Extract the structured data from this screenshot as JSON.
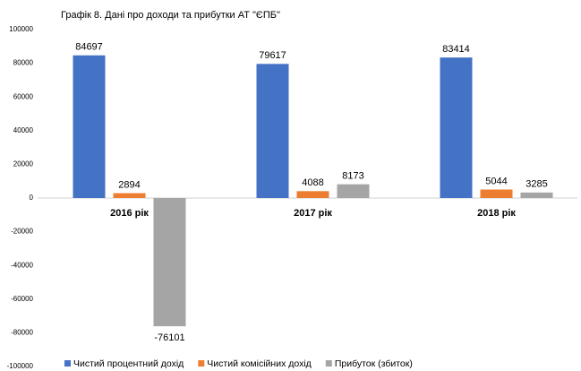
{
  "chart_data": {
    "type": "bar",
    "title": "Графік 8. Дані про доходи та прибутки АТ \"ЄПБ\"",
    "categories": [
      "2016 рік",
      "2017 рік",
      "2018 рік"
    ],
    "series": [
      {
        "name": "Чистий процентний дохід",
        "color": "#4472c4",
        "values": [
          84697,
          79617,
          83414
        ]
      },
      {
        "name": "Чистий комісійних дохід",
        "color": "#ed7d31",
        "values": [
          2894,
          4088,
          5044
        ]
      },
      {
        "name": "Прибуток (збиток)",
        "color": "#a5a5a5",
        "values": [
          -76101,
          8173,
          3285
        ]
      }
    ],
    "ylim": [
      -100000,
      100000
    ],
    "yticks": [
      -100000,
      -80000,
      -60000,
      -40000,
      -20000,
      0,
      20000,
      40000,
      60000,
      80000,
      100000
    ],
    "grid": false,
    "legend": "bottom"
  }
}
